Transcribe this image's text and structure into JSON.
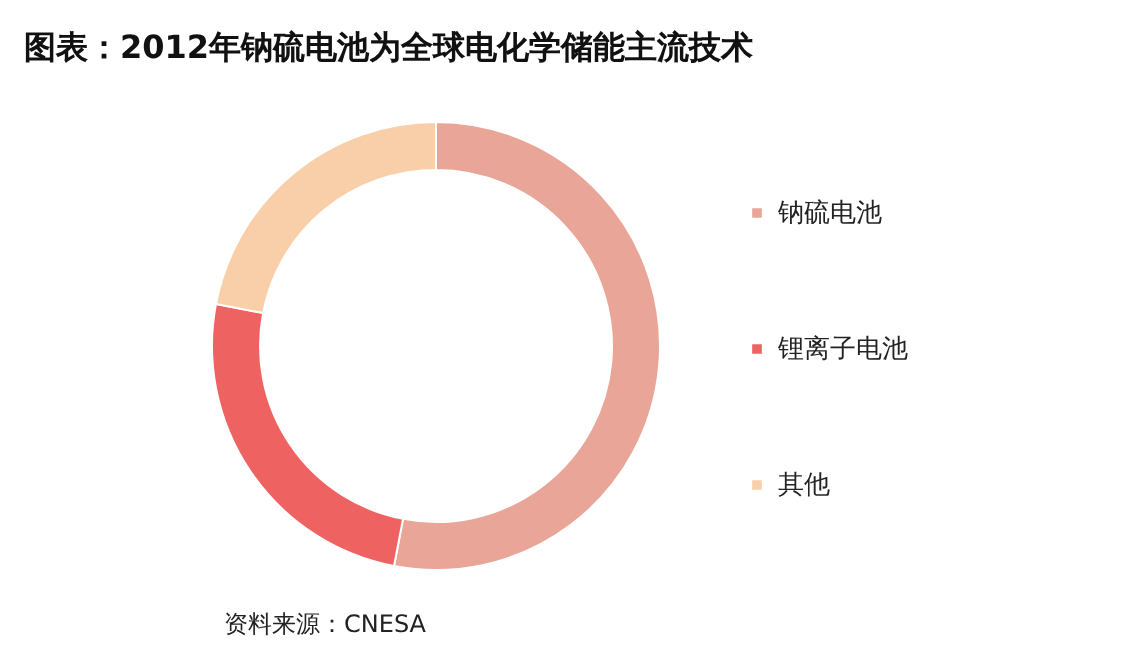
{
  "chart_data": {
    "type": "donut",
    "title": "图表：2012年钠硫电池为全球电化学储能主流技术",
    "categories": [
      "钠硫电池",
      "锂离子电池",
      "其他"
    ],
    "values": [
      53,
      25,
      22
    ],
    "colors": [
      "#e8a598",
      "#ef6262",
      "#f9cfa9"
    ],
    "legend": "right",
    "annotations": [
      "资料来源：CNESA"
    ]
  }
}
